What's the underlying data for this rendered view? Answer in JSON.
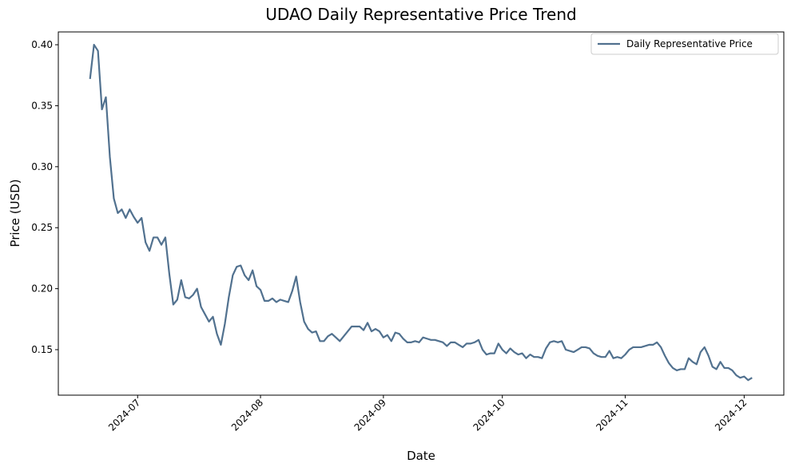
{
  "chart_data": {
    "type": "line",
    "title": "UDAO Daily Representative Price Trend",
    "x_label": "Date",
    "y_label": "Price (USD)",
    "x": [
      "2024-06-19",
      "2024-06-20",
      "2024-06-21",
      "2024-06-22",
      "2024-06-23",
      "2024-06-24",
      "2024-06-25",
      "2024-06-26",
      "2024-06-27",
      "2024-06-28",
      "2024-06-29",
      "2024-06-30",
      "2024-07-01",
      "2024-07-02",
      "2024-07-03",
      "2024-07-04",
      "2024-07-05",
      "2024-07-06",
      "2024-07-07",
      "2024-07-08",
      "2024-07-09",
      "2024-07-10",
      "2024-07-11",
      "2024-07-12",
      "2024-07-13",
      "2024-07-14",
      "2024-07-15",
      "2024-07-16",
      "2024-07-17",
      "2024-07-18",
      "2024-07-19",
      "2024-07-20",
      "2024-07-21",
      "2024-07-22",
      "2024-07-23",
      "2024-07-24",
      "2024-07-25",
      "2024-07-26",
      "2024-07-27",
      "2024-07-28",
      "2024-07-29",
      "2024-07-30",
      "2024-07-31",
      "2024-08-01",
      "2024-08-02",
      "2024-08-03",
      "2024-08-04",
      "2024-08-05",
      "2024-08-06",
      "2024-08-07",
      "2024-08-08",
      "2024-08-09",
      "2024-08-10",
      "2024-08-11",
      "2024-08-12",
      "2024-08-13",
      "2024-08-14",
      "2024-08-15",
      "2024-08-16",
      "2024-08-17",
      "2024-08-18",
      "2024-08-19",
      "2024-08-20",
      "2024-08-21",
      "2024-08-22",
      "2024-08-23",
      "2024-08-24",
      "2024-08-25",
      "2024-08-26",
      "2024-08-27",
      "2024-08-28",
      "2024-08-29",
      "2024-08-30",
      "2024-08-31",
      "2024-09-01",
      "2024-09-02",
      "2024-09-03",
      "2024-09-04",
      "2024-09-05",
      "2024-09-06",
      "2024-09-07",
      "2024-09-08",
      "2024-09-09",
      "2024-09-10",
      "2024-09-11",
      "2024-09-12",
      "2024-09-13",
      "2024-09-14",
      "2024-09-15",
      "2024-09-16",
      "2024-09-17",
      "2024-09-18",
      "2024-09-19",
      "2024-09-20",
      "2024-09-21",
      "2024-09-22",
      "2024-09-23",
      "2024-09-24",
      "2024-09-25",
      "2024-09-26",
      "2024-09-27",
      "2024-09-28",
      "2024-09-29",
      "2024-09-30",
      "2024-10-01",
      "2024-10-02",
      "2024-10-03",
      "2024-10-04",
      "2024-10-05",
      "2024-10-06",
      "2024-10-07",
      "2024-10-08",
      "2024-10-09",
      "2024-10-10",
      "2024-10-11",
      "2024-10-12",
      "2024-10-13",
      "2024-10-14",
      "2024-10-15",
      "2024-10-16",
      "2024-10-17",
      "2024-10-18",
      "2024-10-19",
      "2024-10-20",
      "2024-10-21",
      "2024-10-22",
      "2024-10-23",
      "2024-10-24",
      "2024-10-25",
      "2024-10-26",
      "2024-10-27",
      "2024-10-28",
      "2024-10-29",
      "2024-10-30",
      "2024-10-31",
      "2024-11-01",
      "2024-11-02",
      "2024-11-03",
      "2024-11-04",
      "2024-11-05",
      "2024-11-06",
      "2024-11-07",
      "2024-11-08",
      "2024-11-09",
      "2024-11-10",
      "2024-11-11",
      "2024-11-12",
      "2024-11-13",
      "2024-11-14",
      "2024-11-15",
      "2024-11-16",
      "2024-11-17",
      "2024-11-18",
      "2024-11-19",
      "2024-11-20",
      "2024-11-21",
      "2024-11-22",
      "2024-11-23",
      "2024-11-24",
      "2024-11-25",
      "2024-11-26",
      "2024-11-27",
      "2024-11-28",
      "2024-11-29",
      "2024-11-30",
      "2024-12-01",
      "2024-12-02",
      "2024-12-03"
    ],
    "series": [
      {
        "name": "Daily Representative Price",
        "color": "#51718f",
        "values": [
          0.372,
          0.4,
          0.395,
          0.347,
          0.357,
          0.308,
          0.274,
          0.262,
          0.265,
          0.258,
          0.265,
          0.259,
          0.254,
          0.258,
          0.238,
          0.231,
          0.242,
          0.242,
          0.236,
          0.242,
          0.212,
          0.187,
          0.191,
          0.207,
          0.193,
          0.192,
          0.195,
          0.2,
          0.185,
          0.179,
          0.173,
          0.177,
          0.163,
          0.154,
          0.171,
          0.193,
          0.211,
          0.218,
          0.219,
          0.211,
          0.207,
          0.215,
          0.202,
          0.199,
          0.19,
          0.19,
          0.192,
          0.189,
          0.191,
          0.19,
          0.189,
          0.198,
          0.21,
          0.189,
          0.173,
          0.167,
          0.164,
          0.165,
          0.157,
          0.157,
          0.161,
          0.163,
          0.16,
          0.157,
          0.161,
          0.165,
          0.169,
          0.169,
          0.169,
          0.166,
          0.172,
          0.165,
          0.167,
          0.165,
          0.16,
          0.162,
          0.157,
          0.164,
          0.163,
          0.159,
          0.156,
          0.156,
          0.157,
          0.156,
          0.16,
          0.159,
          0.158,
          0.158,
          0.157,
          0.156,
          0.153,
          0.156,
          0.156,
          0.154,
          0.152,
          0.155,
          0.155,
          0.156,
          0.158,
          0.15,
          0.146,
          0.147,
          0.147,
          0.155,
          0.15,
          0.147,
          0.151,
          0.148,
          0.146,
          0.147,
          0.143,
          0.146,
          0.144,
          0.144,
          0.143,
          0.151,
          0.156,
          0.157,
          0.156,
          0.157,
          0.15,
          0.149,
          0.148,
          0.15,
          0.152,
          0.152,
          0.151,
          0.147,
          0.145,
          0.144,
          0.144,
          0.149,
          0.143,
          0.144,
          0.143,
          0.146,
          0.15,
          0.152,
          0.152,
          0.152,
          0.153,
          0.154,
          0.154,
          0.156,
          0.152,
          0.145,
          0.139,
          0.135,
          0.133,
          0.134,
          0.134,
          0.143,
          0.14,
          0.138,
          0.148,
          0.152,
          0.145,
          0.136,
          0.134,
          0.14,
          0.135,
          0.135,
          0.133,
          0.129,
          0.127,
          0.128,
          0.125,
          0.127
        ]
      }
    ],
    "xlim": [
      "2024-06-11",
      "2024-12-11"
    ],
    "xticks": [
      {
        "value": "2024-07-01",
        "label": "2024-07"
      },
      {
        "value": "2024-08-01",
        "label": "2024-08"
      },
      {
        "value": "2024-09-01",
        "label": "2024-09"
      },
      {
        "value": "2024-10-01",
        "label": "2024-10"
      },
      {
        "value": "2024-11-01",
        "label": "2024-11"
      },
      {
        "value": "2024-12-01",
        "label": "2024-12"
      }
    ],
    "ylim": [
      0.1127,
      0.4105
    ],
    "yticks": [
      {
        "value": 0.15,
        "label": "0.15"
      },
      {
        "value": 0.2,
        "label": "0.20"
      },
      {
        "value": 0.25,
        "label": "0.25"
      },
      {
        "value": 0.3,
        "label": "0.30"
      },
      {
        "value": 0.35,
        "label": "0.35"
      },
      {
        "value": 0.4,
        "label": "0.40"
      }
    ],
    "grid": false,
    "legend": "upper right"
  }
}
